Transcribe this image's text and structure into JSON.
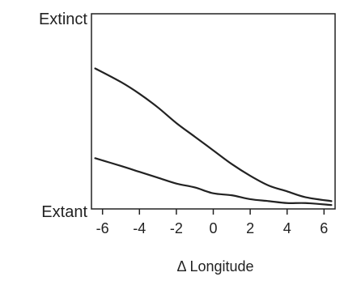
{
  "chart_data": {
    "type": "line",
    "xlabel": "Δ Longitude",
    "y_top_label": "Extinct",
    "y_bottom_label": "Extant",
    "xlim": [
      -6.6,
      6.6
    ],
    "ylim": [
      0,
      1
    ],
    "xticks": [
      "-6",
      "-4",
      "-2",
      "0",
      "2",
      "4",
      "6"
    ],
    "x_tick_values": [
      -6,
      -4,
      -2,
      0,
      2,
      4,
      6
    ],
    "grid": false,
    "series": [
      {
        "x": [
          -6.4,
          -5,
          -4,
          -3,
          -2,
          -1,
          0,
          1,
          2,
          3,
          4,
          5,
          6.4
        ],
        "y": [
          0.72,
          0.65,
          0.59,
          0.52,
          0.44,
          0.37,
          0.3,
          0.23,
          0.17,
          0.12,
          0.09,
          0.06,
          0.04
        ],
        "color": "#222222"
      },
      {
        "x": [
          -6.4,
          -5,
          -4,
          -3,
          -2,
          -1,
          0,
          1,
          2,
          3,
          4,
          5,
          6.4
        ],
        "y": [
          0.26,
          0.22,
          0.19,
          0.16,
          0.13,
          0.11,
          0.08,
          0.07,
          0.05,
          0.04,
          0.03,
          0.03,
          0.02
        ],
        "color": "#222222"
      }
    ]
  }
}
